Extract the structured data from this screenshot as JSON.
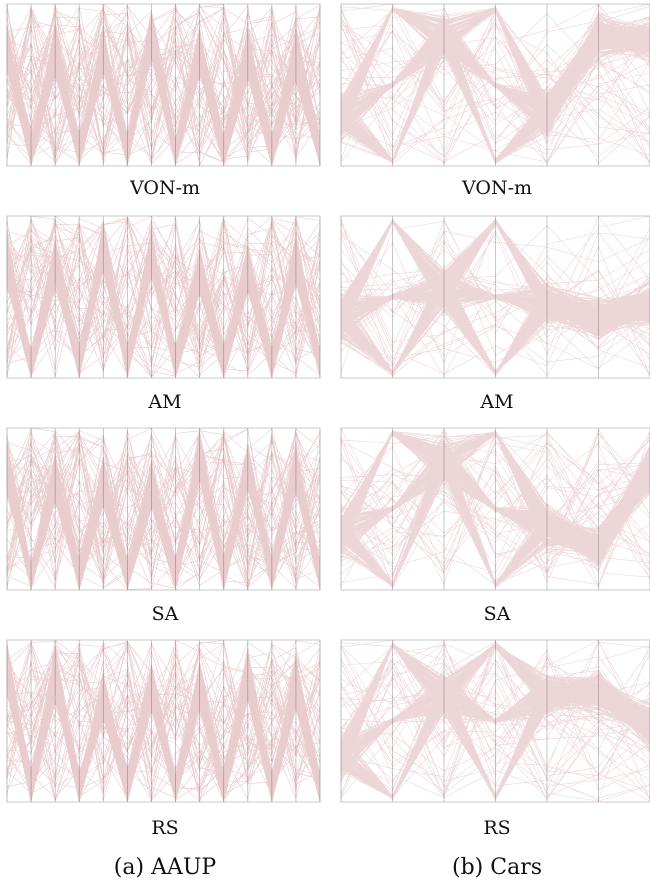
{
  "figure": {
    "columns": [
      {
        "caption": "(a) AAUP"
      },
      {
        "caption": "(b) Cars"
      }
    ],
    "rows": [
      {
        "label": "VON-m"
      },
      {
        "label": "AM"
      },
      {
        "label": "SA"
      },
      {
        "label": "RS"
      }
    ]
  },
  "style": {
    "line_color": "#9b1b22",
    "axis_color": "#b8b8b8",
    "frame_color": "#c8c8c8"
  },
  "chart_data": [
    {
      "type": "parallel-coordinates",
      "dataset": "AAUP",
      "ordering": "VON-m",
      "axes": 14
    },
    {
      "type": "parallel-coordinates",
      "dataset": "Cars",
      "ordering": "VON-m",
      "axes": 7
    },
    {
      "type": "parallel-coordinates",
      "dataset": "AAUP",
      "ordering": "AM",
      "axes": 14
    },
    {
      "type": "parallel-coordinates",
      "dataset": "Cars",
      "ordering": "AM",
      "axes": 7
    },
    {
      "type": "parallel-coordinates",
      "dataset": "AAUP",
      "ordering": "SA",
      "axes": 14
    },
    {
      "type": "parallel-coordinates",
      "dataset": "Cars",
      "ordering": "SA",
      "axes": 7
    },
    {
      "type": "parallel-coordinates",
      "dataset": "AAUP",
      "ordering": "RS",
      "axes": 14
    },
    {
      "type": "parallel-coordinates",
      "dataset": "Cars",
      "ordering": "RS",
      "axes": 7
    }
  ]
}
